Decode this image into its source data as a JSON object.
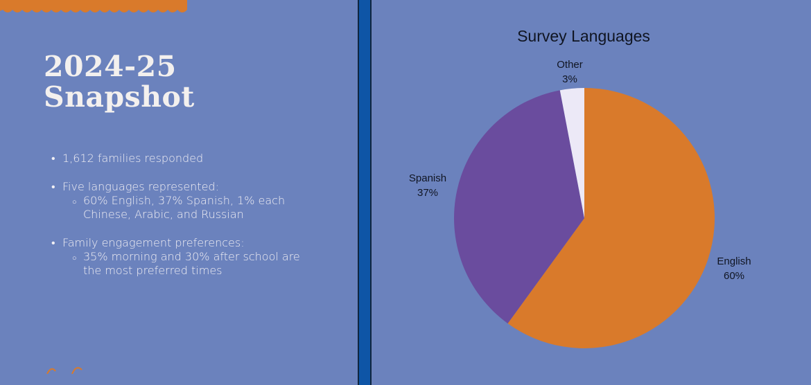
{
  "colors": {
    "background": "#6b82bd",
    "accent_orange": "#d97a2b",
    "divider_blue": "#0e55a6",
    "text_light": "#f1eff4"
  },
  "left": {
    "title_line1": "2024-25",
    "title_line2": "Snapshot",
    "bullets": [
      {
        "text": "1,612 families responded",
        "subs": []
      },
      {
        "text": "Five languages represented:",
        "subs": [
          "60% English, 37% Spanish, 1% each",
          "Chinese, Arabic, and Russian"
        ]
      },
      {
        "text": "Family engagement preferences:",
        "subs": [
          "35% morning and 30% after school are",
          "the most preferred times"
        ]
      }
    ]
  },
  "chart_data": {
    "type": "pie",
    "title": "Survey Languages",
    "slices": [
      {
        "label": "English",
        "value": 60,
        "value_label": "60%",
        "color": "#d97a2b"
      },
      {
        "label": "Spanish",
        "value": 37,
        "value_label": "37%",
        "color": "#6a4c9e"
      },
      {
        "label": "Other",
        "value": 3,
        "value_label": "3%",
        "color": "#ece9f7"
      }
    ],
    "start_angle_deg": 0,
    "direction": "clockwise",
    "legend": "none",
    "data_labels": "outside"
  }
}
